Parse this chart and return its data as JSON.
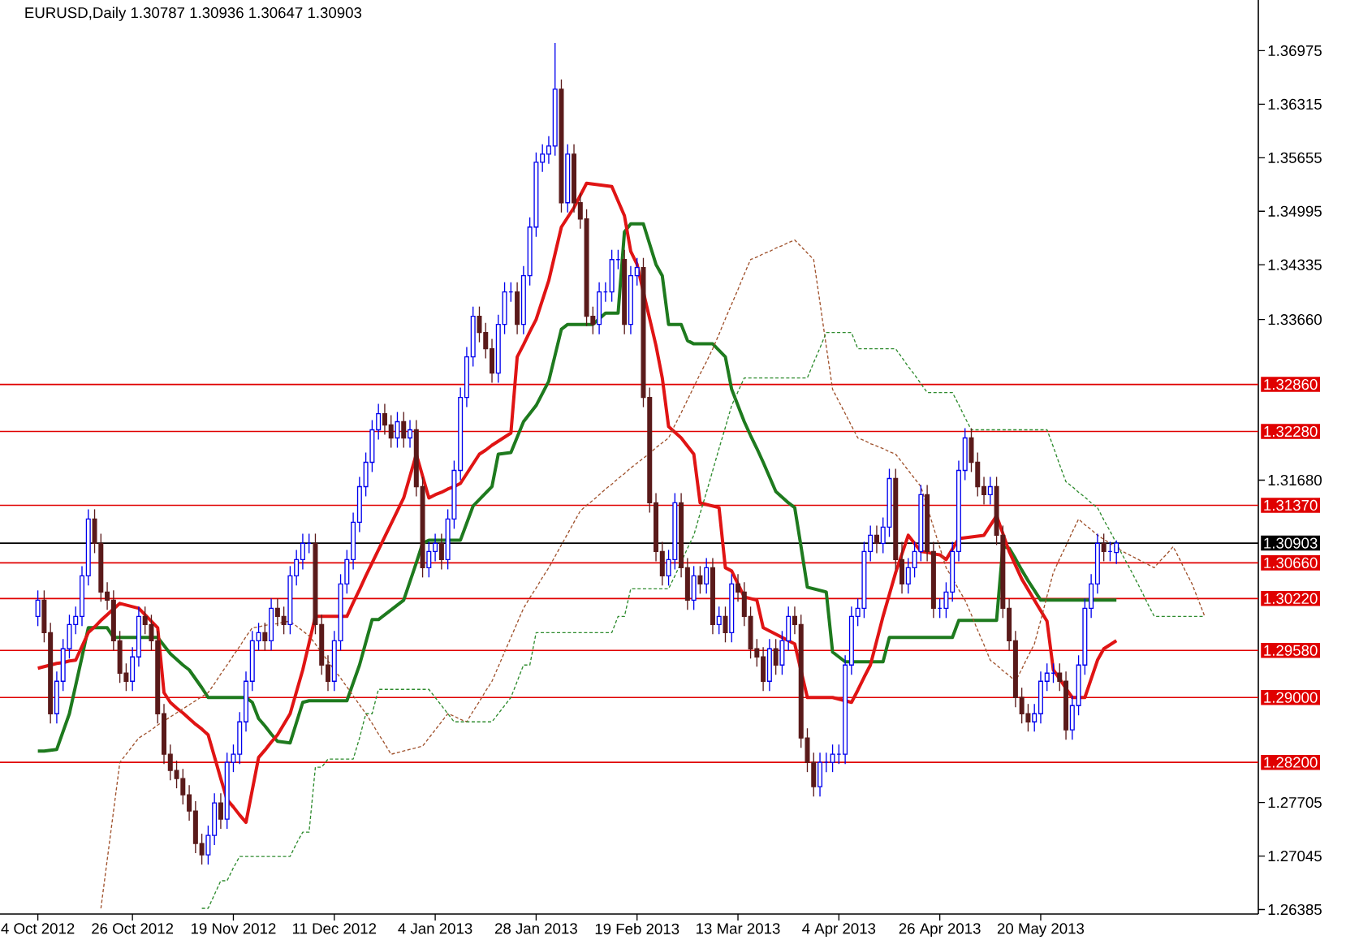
{
  "chart_data": {
    "type": "candlestick",
    "title": "EURUSD,Daily  1.30787 1.30936 1.30647 1.30903",
    "categories": [
      "4 Oct 2012",
      null,
      null,
      null,
      null,
      null,
      null,
      null,
      null,
      null,
      null,
      null,
      null,
      null,
      null,
      "26 Oct 2012",
      null,
      null,
      null,
      null,
      null,
      null,
      null,
      null,
      null,
      null,
      null,
      null,
      null,
      null,
      null,
      "19 Nov 2012",
      null,
      null,
      null,
      null,
      null,
      null,
      null,
      null,
      null,
      null,
      null,
      null,
      null,
      null,
      null,
      "11 Dec 2012",
      null,
      null,
      null,
      null,
      null,
      null,
      null,
      null,
      null,
      null,
      null,
      null,
      null,
      null,
      null,
      "4 Jan 2013",
      null,
      null,
      null,
      null,
      null,
      null,
      null,
      null,
      null,
      null,
      null,
      null,
      null,
      null,
      null,
      "28 Jan 2013",
      null,
      null,
      null,
      null,
      null,
      null,
      null,
      null,
      null,
      null,
      null,
      null,
      null,
      null,
      null,
      "19 Feb 2013",
      null,
      null,
      null,
      null,
      null,
      null,
      null,
      null,
      null,
      null,
      null,
      null,
      null,
      null,
      null,
      "13 Mar 2013",
      null,
      null,
      null,
      null,
      null,
      null,
      null,
      null,
      null,
      null,
      null,
      null,
      null,
      null,
      null,
      "4 Apr 2013",
      null,
      null,
      null,
      null,
      null,
      null,
      null,
      null,
      null,
      null,
      null,
      null,
      null,
      null,
      null,
      "26 Apr 2013",
      null,
      null,
      null,
      null,
      null,
      null,
      null,
      null,
      null,
      null,
      null,
      null,
      null,
      null,
      null,
      "20 May 2013",
      null,
      null,
      null,
      null,
      null,
      null,
      null,
      null,
      null,
      null,
      null,
      null,
      null,
      null,
      null,
      null,
      null,
      null,
      null,
      null,
      null,
      null,
      null,
      null,
      null,
      null,
      null,
      null,
      null,
      null,
      null,
      null,
      null,
      null
    ],
    "ohlc": [
      [
        1.3,
        1.3032,
        1.2988,
        1.302
      ],
      [
        1.302,
        1.3032,
        1.2968,
        1.298
      ],
      [
        1.298,
        1.2992,
        1.2868,
        1.288
      ],
      [
        1.288,
        1.2932,
        1.2868,
        1.292
      ],
      [
        1.292,
        1.2972,
        1.2908,
        1.296
      ],
      [
        1.296,
        1.3002,
        1.2948,
        1.299
      ],
      [
        1.299,
        1.3012,
        1.2978,
        1.3
      ],
      [
        1.3,
        1.3062,
        1.2988,
        1.305
      ],
      [
        1.305,
        1.3132,
        1.3038,
        1.312
      ],
      [
        1.312,
        1.3132,
        1.3078,
        1.309
      ],
      [
        1.309,
        1.3102,
        1.3018,
        1.303
      ],
      [
        1.303,
        1.3042,
        1.3008,
        1.302
      ],
      [
        1.302,
        1.3032,
        1.2958,
        1.297
      ],
      [
        1.297,
        1.2982,
        1.2918,
        1.293
      ],
      [
        1.293,
        1.2942,
        1.2908,
        1.292
      ],
      [
        1.292,
        1.2962,
        1.2908,
        1.295
      ],
      [
        1.295,
        1.3012,
        1.2938,
        1.3
      ],
      [
        1.3,
        1.3012,
        1.2978,
        1.299
      ],
      [
        1.299,
        1.3002,
        1.2958,
        1.297
      ],
      [
        1.297,
        1.2982,
        1.2868,
        1.288
      ],
      [
        1.288,
        1.2892,
        1.2818,
        1.283
      ],
      [
        1.283,
        1.2842,
        1.2798,
        1.281
      ],
      [
        1.281,
        1.2822,
        1.2788,
        1.28
      ],
      [
        1.28,
        1.2812,
        1.2768,
        1.278
      ],
      [
        1.278,
        1.2792,
        1.2748,
        1.276
      ],
      [
        1.276,
        1.2772,
        1.2708,
        1.272
      ],
      [
        1.272,
        1.2732,
        1.2694,
        1.2706
      ],
      [
        1.2706,
        1.2742,
        1.2694,
        1.273
      ],
      [
        1.273,
        1.2782,
        1.2718,
        1.277
      ],
      [
        1.277,
        1.2782,
        1.2738,
        1.275
      ],
      [
        1.275,
        1.2832,
        1.2738,
        1.282
      ],
      [
        1.282,
        1.2842,
        1.2808,
        1.283
      ],
      [
        1.283,
        1.2882,
        1.2818,
        1.287
      ],
      [
        1.287,
        1.2932,
        1.2858,
        1.292
      ],
      [
        1.292,
        1.2982,
        1.2908,
        1.297
      ],
      [
        1.297,
        1.2992,
        1.2958,
        1.298
      ],
      [
        1.298,
        1.2992,
        1.2958,
        1.297
      ],
      [
        1.297,
        1.3022,
        1.2958,
        1.301
      ],
      [
        1.301,
        1.3022,
        1.2988,
        1.3
      ],
      [
        1.3,
        1.3012,
        1.2978,
        1.299
      ],
      [
        1.299,
        1.3062,
        1.2978,
        1.305
      ],
      [
        1.305,
        1.3082,
        1.3038,
        1.307
      ],
      [
        1.307,
        1.3102,
        1.3058,
        1.309
      ],
      [
        1.309,
        1.3102,
        1.3078,
        1.309
      ],
      [
        1.309,
        1.3102,
        1.2978,
        1.299
      ],
      [
        1.299,
        1.3002,
        1.2928,
        1.294
      ],
      [
        1.294,
        1.2952,
        1.2908,
        1.292
      ],
      [
        1.292,
        1.2982,
        1.2908,
        1.297
      ],
      [
        1.297,
        1.3052,
        1.2958,
        1.304
      ],
      [
        1.304,
        1.3082,
        1.3028,
        1.307
      ],
      [
        1.307,
        1.3128,
        1.3058,
        1.3116
      ],
      [
        1.3116,
        1.3172,
        1.3104,
        1.316
      ],
      [
        1.316,
        1.3202,
        1.3148,
        1.319
      ],
      [
        1.319,
        1.3242,
        1.3178,
        1.323
      ],
      [
        1.323,
        1.3262,
        1.3218,
        1.325
      ],
      [
        1.325,
        1.3262,
        1.3224,
        1.3236
      ],
      [
        1.3236,
        1.3248,
        1.3208,
        1.322
      ],
      [
        1.322,
        1.3252,
        1.3208,
        1.324
      ],
      [
        1.324,
        1.3252,
        1.3208,
        1.322
      ],
      [
        1.322,
        1.3242,
        1.3208,
        1.323
      ],
      [
        1.323,
        1.3242,
        1.3148,
        1.316
      ],
      [
        1.316,
        1.3172,
        1.3048,
        1.306
      ],
      [
        1.306,
        1.3092,
        1.3048,
        1.308
      ],
      [
        1.308,
        1.3102,
        1.3068,
        1.309
      ],
      [
        1.309,
        1.3102,
        1.3058,
        1.307
      ],
      [
        1.307,
        1.3132,
        1.3058,
        1.312
      ],
      [
        1.312,
        1.3192,
        1.3108,
        1.318
      ],
      [
        1.318,
        1.3282,
        1.3168,
        1.327
      ],
      [
        1.327,
        1.3332,
        1.3258,
        1.332
      ],
      [
        1.332,
        1.3382,
        1.3308,
        1.337
      ],
      [
        1.337,
        1.3382,
        1.3338,
        1.335
      ],
      [
        1.335,
        1.3362,
        1.3318,
        1.333
      ],
      [
        1.333,
        1.3342,
        1.3288,
        1.33
      ],
      [
        1.33,
        1.3372,
        1.3288,
        1.336
      ],
      [
        1.336,
        1.3412,
        1.3348,
        1.34
      ],
      [
        1.34,
        1.3412,
        1.3388,
        1.34
      ],
      [
        1.34,
        1.3412,
        1.3348,
        1.336
      ],
      [
        1.336,
        1.3432,
        1.3348,
        1.342
      ],
      [
        1.342,
        1.3492,
        1.3408,
        1.348
      ],
      [
        1.348,
        1.3572,
        1.3468,
        1.356
      ],
      [
        1.356,
        1.3582,
        1.3548,
        1.357
      ],
      [
        1.357,
        1.3592,
        1.3558,
        1.358
      ],
      [
        1.358,
        1.3707,
        1.3568,
        1.365
      ],
      [
        1.365,
        1.3662,
        1.3498,
        1.351
      ],
      [
        1.351,
        1.3582,
        1.3498,
        1.357
      ],
      [
        1.357,
        1.3582,
        1.3498,
        1.351
      ],
      [
        1.351,
        1.3522,
        1.3478,
        1.349
      ],
      [
        1.349,
        1.3502,
        1.3358,
        1.337
      ],
      [
        1.337,
        1.3382,
        1.3348,
        1.336
      ],
      [
        1.336,
        1.3412,
        1.3348,
        1.34
      ],
      [
        1.34,
        1.3412,
        1.3388,
        1.34
      ],
      [
        1.34,
        1.3452,
        1.3388,
        1.344
      ],
      [
        1.344,
        1.3452,
        1.3428,
        1.344
      ],
      [
        1.344,
        1.3452,
        1.3348,
        1.336
      ],
      [
        1.336,
        1.3432,
        1.3348,
        1.342
      ],
      [
        1.342,
        1.3442,
        1.3408,
        1.343
      ],
      [
        1.343,
        1.3442,
        1.3258,
        1.327
      ],
      [
        1.327,
        1.3282,
        1.3128,
        1.314
      ],
      [
        1.314,
        1.3152,
        1.3068,
        1.308
      ],
      [
        1.308,
        1.3092,
        1.3038,
        1.305
      ],
      [
        1.305,
        1.3082,
        1.3038,
        1.307
      ],
      [
        1.307,
        1.3152,
        1.3058,
        1.314
      ],
      [
        1.314,
        1.3152,
        1.3048,
        1.306
      ],
      [
        1.306,
        1.3072,
        1.3008,
        1.302
      ],
      [
        1.302,
        1.3062,
        1.3008,
        1.305
      ],
      [
        1.305,
        1.3062,
        1.3028,
        1.304
      ],
      [
        1.304,
        1.3072,
        1.3028,
        1.306
      ],
      [
        1.306,
        1.3072,
        1.2978,
        1.299
      ],
      [
        1.299,
        1.3012,
        1.2978,
        1.3
      ],
      [
        1.3,
        1.3012,
        1.2968,
        1.298
      ],
      [
        1.298,
        1.3052,
        1.2968,
        1.304
      ],
      [
        1.304,
        1.3052,
        1.3018,
        1.303
      ],
      [
        1.303,
        1.3042,
        1.2988,
        1.3
      ],
      [
        1.3,
        1.3012,
        1.2948,
        1.296
      ],
      [
        1.296,
        1.2972,
        1.2938,
        1.295
      ],
      [
        1.295,
        1.2962,
        1.2908,
        1.292
      ],
      [
        1.292,
        1.2972,
        1.2908,
        1.296
      ],
      [
        1.296,
        1.2972,
        1.2928,
        1.294
      ],
      [
        1.294,
        1.2982,
        1.2928,
        1.297
      ],
      [
        1.297,
        1.3012,
        1.2958,
        1.3
      ],
      [
        1.3,
        1.3012,
        1.2978,
        1.299
      ],
      [
        1.299,
        1.3002,
        1.2838,
        1.285
      ],
      [
        1.285,
        1.2862,
        1.2808,
        1.282
      ],
      [
        1.282,
        1.2832,
        1.2778,
        1.279
      ],
      [
        1.279,
        1.2832,
        1.2778,
        1.282
      ],
      [
        1.282,
        1.2832,
        1.2808,
        1.282
      ],
      [
        1.282,
        1.2842,
        1.2808,
        1.283
      ],
      [
        1.283,
        1.2842,
        1.2818,
        1.283
      ],
      [
        1.283,
        1.2952,
        1.2818,
        1.294
      ],
      [
        1.294,
        1.3012,
        1.2928,
        1.3
      ],
      [
        1.3,
        1.3022,
        1.2988,
        1.301
      ],
      [
        1.301,
        1.3092,
        1.2998,
        1.308
      ],
      [
        1.308,
        1.3112,
        1.3068,
        1.31
      ],
      [
        1.31,
        1.3112,
        1.3078,
        1.309
      ],
      [
        1.309,
        1.3122,
        1.3078,
        1.311
      ],
      [
        1.311,
        1.3182,
        1.3098,
        1.317
      ],
      [
        1.317,
        1.3182,
        1.3058,
        1.307
      ],
      [
        1.307,
        1.3092,
        1.3028,
        1.304
      ],
      [
        1.304,
        1.3072,
        1.3028,
        1.306
      ],
      [
        1.306,
        1.3092,
        1.3048,
        1.308
      ],
      [
        1.308,
        1.3162,
        1.3068,
        1.315
      ],
      [
        1.315,
        1.3162,
        1.3068,
        1.308
      ],
      [
        1.308,
        1.3092,
        1.2998,
        1.301
      ],
      [
        1.301,
        1.3022,
        1.2998,
        1.301
      ],
      [
        1.301,
        1.3042,
        1.2998,
        1.303
      ],
      [
        1.303,
        1.3092,
        1.3018,
        1.308
      ],
      [
        1.308,
        1.3192,
        1.3068,
        1.318
      ],
      [
        1.318,
        1.3232,
        1.3168,
        1.322
      ],
      [
        1.322,
        1.3232,
        1.3178,
        1.319
      ],
      [
        1.319,
        1.3202,
        1.3148,
        1.316
      ],
      [
        1.316,
        1.3172,
        1.3138,
        1.315
      ],
      [
        1.315,
        1.3172,
        1.3138,
        1.316
      ],
      [
        1.316,
        1.3172,
        1.3088,
        1.31
      ],
      [
        1.31,
        1.3112,
        1.2998,
        1.301
      ],
      [
        1.301,
        1.3022,
        1.2958,
        1.297
      ],
      [
        1.297,
        1.2982,
        1.2888,
        1.29
      ],
      [
        1.29,
        1.2912,
        1.2868,
        1.288
      ],
      [
        1.288,
        1.2892,
        1.2858,
        1.287
      ],
      [
        1.287,
        1.2892,
        1.2858,
        1.288
      ],
      [
        1.288,
        1.2932,
        1.2868,
        1.292
      ],
      [
        1.292,
        1.2942,
        1.2908,
        1.293
      ],
      [
        1.293,
        1.2942,
        1.2918,
        1.293
      ],
      [
        1.293,
        1.2942,
        1.2908,
        1.292
      ],
      [
        1.292,
        1.2932,
        1.2848,
        1.286
      ],
      [
        1.286,
        1.2902,
        1.2848,
        1.289
      ],
      [
        1.289,
        1.2952,
        1.2878,
        1.294
      ],
      [
        1.294,
        1.3022,
        1.2928,
        1.301
      ],
      [
        1.301,
        1.3052,
        1.2998,
        1.304
      ],
      [
        1.304,
        1.3102,
        1.3028,
        1.309
      ],
      [
        1.309,
        1.3102,
        1.3068,
        1.308
      ],
      [
        1.308,
        1.3092,
        1.3068,
        1.308
      ],
      [
        1.30787,
        1.30936,
        1.30647,
        1.30903
      ],
      null,
      null,
      null,
      null,
      null,
      null,
      null,
      null,
      null,
      null,
      null,
      null,
      null,
      null,
      null,
      null,
      null,
      null,
      null,
      null,
      null,
      null
    ],
    "series": [
      {
        "type": "line",
        "color": "#1e7a1e",
        "line_style": "solid",
        "values": [
          1.2834,
          1.2834,
          1.2835,
          1.2836,
          1.2858,
          1.288,
          1.2915,
          1.295,
          1.2986,
          1.2986,
          1.2986,
          1.2986,
          1.2974,
          1.2974,
          1.2974,
          1.2974,
          1.2974,
          1.2974,
          1.2974,
          1.2974,
          1.2964,
          1.2954,
          1.2947,
          1.294,
          1.2934,
          1.2923,
          1.2912,
          1.29,
          1.29,
          1.29,
          1.29,
          1.29,
          1.29,
          1.29,
          1.2894,
          1.2874,
          1.2865,
          1.2855,
          1.2846,
          1.2845,
          1.2844,
          1.2869,
          1.2894,
          1.2896,
          1.2896,
          1.2896,
          1.2896,
          1.2896,
          1.2896,
          1.2896,
          1.2918,
          1.294,
          1.2968,
          1.2996,
          1.2996,
          1.3002,
          1.3008,
          1.3014,
          1.302,
          1.3043,
          1.3066,
          1.309,
          1.3094,
          1.3094,
          1.3094,
          1.3094,
          1.3094,
          1.3094,
          1.3115,
          1.3136,
          1.3144,
          1.3152,
          1.316,
          1.32,
          1.3201,
          1.3202,
          1.3221,
          1.324,
          1.325,
          1.326,
          1.3275,
          1.329,
          1.3322,
          1.3354,
          1.336,
          1.336,
          1.336,
          1.336,
          1.336,
          1.3367,
          1.3374,
          1.3374,
          1.3374,
          1.3474,
          1.3484,
          1.3484,
          1.3484,
          1.3459,
          1.3434,
          1.342,
          1.336,
          1.336,
          1.336,
          1.334,
          1.3336,
          1.3336,
          1.3336,
          1.3336,
          1.3328,
          1.332,
          1.328,
          1.326,
          1.324,
          1.3223,
          1.3207,
          1.319,
          1.3172,
          1.3154,
          1.3147,
          1.314,
          1.3134,
          1.3086,
          1.3036,
          1.3034,
          1.3032,
          1.303,
          1.2956,
          1.295,
          1.2944,
          1.2944,
          1.2944,
          1.2944,
          1.2944,
          1.2944,
          1.2944,
          1.2974,
          1.2974,
          1.2974,
          1.2974,
          1.2974,
          1.2974,
          1.2974,
          1.2974,
          1.2974,
          1.2974,
          1.2974,
          1.2995,
          1.2995,
          1.2995,
          1.2995,
          1.2995,
          1.2995,
          1.2995,
          1.3086,
          1.3084,
          1.3071,
          1.3057,
          1.3044,
          1.3032,
          1.302,
          1.302,
          1.302,
          1.302,
          1.302,
          1.302,
          1.302,
          1.302,
          1.302,
          1.302,
          1.302,
          1.302,
          1.302,
          null,
          null,
          null,
          null,
          null,
          null,
          null,
          null,
          null,
          null,
          null,
          null,
          null,
          null,
          null,
          null,
          null,
          null,
          null,
          null,
          null,
          null
        ]
      },
      {
        "type": "line",
        "color": "#e01414",
        "line_style": "solid",
        "values": [
          1.2936,
          1.2938,
          1.294,
          1.2942,
          1.2943,
          1.2945,
          1.2946,
          1.2963,
          1.298,
          1.2987,
          1.2995,
          1.3002,
          1.3009,
          1.3016,
          1.3014,
          1.3012,
          1.301,
          1.3002,
          1.2994,
          1.2986,
          1.2906,
          1.2894,
          1.2887,
          1.2881,
          1.2874,
          1.2867,
          1.2861,
          1.2854,
          1.2827,
          1.28,
          1.2774,
          1.2765,
          1.2755,
          1.2746,
          1.2786,
          1.2826,
          1.2835,
          1.2845,
          1.2854,
          1.2867,
          1.288,
          1.2907,
          1.2934,
          1.2967,
          1.3,
          1.3,
          1.3,
          1.3,
          1.3,
          1.3,
          1.3017,
          1.3033,
          1.305,
          1.3066,
          1.3082,
          1.3098,
          1.3114,
          1.313,
          1.3146,
          1.3173,
          1.32,
          1.3173,
          1.3146,
          1.315,
          1.3153,
          1.3157,
          1.316,
          1.3164,
          1.3176,
          1.3188,
          1.32,
          1.3205,
          1.3211,
          1.3216,
          1.3221,
          1.3226,
          1.332,
          1.3335,
          1.3351,
          1.3366,
          1.339,
          1.3414,
          1.3447,
          1.348,
          1.3492,
          1.3504,
          1.3519,
          1.3534,
          1.3533,
          1.3532,
          1.3531,
          1.353,
          1.3512,
          1.3494,
          1.345,
          1.3434,
          1.34,
          1.3367,
          1.3334,
          1.3294,
          1.3234,
          1.3227,
          1.322,
          1.321,
          1.32,
          1.314,
          1.3138,
          1.3136,
          1.3134,
          1.306,
          1.3056,
          1.304,
          1.3024,
          1.3022,
          1.302,
          1.2986,
          1.2982,
          1.2978,
          1.2974,
          1.297,
          1.2966,
          1.2933,
          1.29,
          1.29,
          1.29,
          1.29,
          1.29,
          1.2898,
          1.2896,
          1.2894,
          1.2909,
          1.2925,
          1.294,
          1.297,
          1.3,
          1.3027,
          1.3054,
          1.3077,
          1.31,
          1.309,
          1.308,
          1.3079,
          1.3077,
          1.3076,
          1.307,
          1.3083,
          1.3096,
          1.3097,
          1.3098,
          1.3099,
          1.31,
          1.3112,
          1.3124,
          1.3102,
          1.308,
          1.3063,
          1.3046,
          1.3033,
          1.302,
          1.3007,
          1.2994,
          1.2934,
          1.2923,
          1.2911,
          1.29,
          1.29,
          1.29,
          1.2923,
          1.2946,
          1.296,
          1.2965,
          1.297,
          null,
          null,
          null,
          null,
          null,
          null,
          null,
          null,
          null,
          null,
          null,
          null,
          null,
          null,
          null,
          null,
          null,
          null,
          null,
          null,
          null,
          null
        ]
      },
      {
        "type": "line",
        "color": "#a0522d",
        "line_style": "dashed",
        "values": [
          null,
          null,
          null,
          null,
          null,
          null,
          null,
          null,
          null,
          null,
          1.264,
          1.27,
          1.276,
          1.282,
          1.283,
          1.284,
          1.285,
          1.2855,
          1.286,
          1.2866,
          1.2871,
          1.2876,
          1.2881,
          1.2886,
          1.2891,
          1.2896,
          1.2901,
          1.2906,
          1.2917,
          1.2929,
          1.294,
          1.2952,
          1.2963,
          1.2975,
          1.2986,
          1.2987,
          1.2989,
          1.299,
          1.2991,
          1.2993,
          1.2994,
          1.2988,
          1.2982,
          1.2976,
          1.2966,
          1.2955,
          1.2945,
          1.2934,
          1.2924,
          1.2913,
          1.2902,
          1.2891,
          1.288,
          1.2868,
          1.2855,
          1.2843,
          1.283,
          1.2832,
          1.2834,
          1.2836,
          1.2838,
          1.284,
          1.285,
          1.286,
          1.287,
          1.288,
          1.2877,
          1.2873,
          1.287,
          1.2883,
          1.2895,
          1.2908,
          1.292,
          1.2938,
          1.2956,
          1.2974,
          1.2992,
          1.301,
          1.3023,
          1.3035,
          1.3048,
          1.306,
          1.3074,
          1.3088,
          1.3102,
          1.3116,
          1.313,
          1.3137,
          1.3143,
          1.315,
          1.3157,
          1.3163,
          1.317,
          1.3176,
          1.3183,
          1.3189,
          1.3195,
          1.3201,
          1.3208,
          1.3214,
          1.322,
          1.3236,
          1.3251,
          1.3267,
          1.3283,
          1.3299,
          1.3314,
          1.333,
          1.3348,
          1.3367,
          1.3385,
          1.3403,
          1.3422,
          1.344,
          1.3443,
          1.3447,
          1.345,
          1.3454,
          1.3457,
          1.3461,
          1.3464,
          1.3456,
          1.3448,
          1.344,
          1.3387,
          1.3333,
          1.328,
          1.3265,
          1.325,
          1.3235,
          1.322,
          1.3217,
          1.3213,
          1.321,
          1.3207,
          1.3203,
          1.32,
          1.319,
          1.318,
          1.317,
          1.316,
          1.3135,
          1.311,
          1.3085,
          1.306,
          1.3047,
          1.3033,
          1.302,
          1.3002,
          1.2983,
          1.2965,
          1.2946,
          1.294,
          1.2933,
          1.2927,
          1.292,
          1.2935,
          1.2951,
          1.2966,
          1.2995,
          1.3025,
          1.3054,
          1.3071,
          1.3087,
          1.3104,
          1.312,
          1.3113,
          1.3107,
          1.31,
          1.3095,
          1.309,
          1.3085,
          1.308,
          1.3076,
          1.3072,
          1.3068,
          1.3064,
          1.306,
          1.3069,
          1.3077,
          1.3086,
          1.3071,
          1.3055,
          1.304,
          1.302,
          1.3,
          null,
          null,
          null,
          null,
          null,
          null,
          null,
          null
        ]
      },
      {
        "type": "line",
        "color": "#2e8b2e",
        "line_style": "dashed",
        "values": [
          null,
          null,
          null,
          null,
          null,
          null,
          null,
          null,
          null,
          null,
          null,
          null,
          null,
          null,
          null,
          null,
          null,
          null,
          null,
          null,
          null,
          null,
          null,
          null,
          null,
          null,
          1.264,
          1.264,
          1.2657,
          1.2674,
          1.2674,
          1.269,
          1.2704,
          1.2704,
          1.2704,
          1.2704,
          1.2704,
          1.2704,
          1.2704,
          1.2704,
          1.2704,
          1.272,
          1.2734,
          1.2734,
          1.2814,
          1.2814,
          1.2824,
          1.2824,
          1.2824,
          1.2824,
          1.2824,
          1.285,
          1.288,
          1.288,
          1.291,
          1.291,
          1.291,
          1.291,
          1.291,
          1.291,
          1.291,
          1.291,
          1.291,
          1.29,
          1.289,
          1.288,
          1.287,
          1.287,
          1.287,
          1.287,
          1.287,
          1.287,
          1.287,
          1.288,
          1.289,
          1.29,
          1.292,
          1.294,
          1.294,
          1.298,
          1.298,
          1.298,
          1.298,
          1.298,
          1.298,
          1.298,
          1.298,
          1.298,
          1.298,
          1.298,
          1.298,
          1.298,
          1.3,
          1.3,
          1.3034,
          1.3034,
          1.3034,
          1.3034,
          1.3034,
          1.3034,
          1.3034,
          1.305,
          null,
          1.3084,
          1.31,
          1.3127,
          1.3153,
          1.318,
          1.3207,
          1.3233,
          1.326,
          1.3277,
          1.3294,
          1.3294,
          1.3294,
          1.3294,
          1.3294,
          1.3294,
          1.3294,
          1.3294,
          1.3294,
          1.3294,
          1.3294,
          1.3313,
          1.3331,
          1.335,
          1.335,
          1.335,
          1.335,
          1.335,
          1.333,
          1.333,
          1.333,
          1.333,
          1.333,
          1.333,
          1.333,
          1.3319,
          1.3308,
          1.3298,
          1.3287,
          1.3276,
          1.3276,
          1.3276,
          1.3276,
          1.3276,
          1.3261,
          1.3245,
          1.323,
          1.323,
          1.323,
          1.323,
          1.323,
          1.323,
          1.323,
          1.323,
          1.323,
          1.323,
          1.323,
          1.323,
          1.323,
          1.3209,
          1.3187,
          1.3166,
          1.316,
          1.3153,
          1.3147,
          1.314,
          1.3134,
          1.3119,
          1.3105,
          1.309,
          1.3075,
          1.3061,
          1.3046,
          1.3031,
          1.3015,
          1.3,
          1.3,
          1.3,
          1.3,
          1.3,
          1.3,
          1.3,
          1.3,
          1.3,
          null,
          null,
          null,
          null,
          null,
          null,
          null,
          null
        ]
      }
    ],
    "ylim": [
      1.2633,
      1.376
    ],
    "yticks": [
      {
        "value": 1.36975,
        "label": "1.36975"
      },
      {
        "value": 1.36315,
        "label": "1.36315"
      },
      {
        "value": 1.35655,
        "label": "1.35655"
      },
      {
        "value": 1.34995,
        "label": "1.34995"
      },
      {
        "value": 1.34335,
        "label": "1.34335"
      },
      {
        "value": 1.3366,
        "label": "1.33660"
      },
      {
        "value": 1.3168,
        "label": "1.31680"
      },
      {
        "value": 1.27705,
        "label": "1.27705"
      },
      {
        "value": 1.27045,
        "label": "1.27045"
      },
      {
        "value": 1.26385,
        "label": "1.26385"
      }
    ],
    "ref_lines": [
      {
        "axis": "y",
        "value": 1.3286,
        "label": "1.32860",
        "color": "#e00000"
      },
      {
        "axis": "y",
        "value": 1.3228,
        "label": "1.32280",
        "color": "#e00000"
      },
      {
        "axis": "y",
        "value": 1.3137,
        "label": "1.31370",
        "color": "#e00000"
      },
      {
        "axis": "y",
        "value": 1.30903,
        "label": "1.30903",
        "color": "#000000"
      },
      {
        "axis": "y",
        "value": 1.3066,
        "label": "1.30660",
        "color": "#e00000"
      },
      {
        "axis": "y",
        "value": 1.3022,
        "label": "1.30220",
        "color": "#e00000"
      },
      {
        "axis": "y",
        "value": 1.2958,
        "label": "1.29580",
        "color": "#e00000"
      },
      {
        "axis": "y",
        "value": 1.29,
        "label": "1.29000",
        "color": "#e00000"
      },
      {
        "axis": "y",
        "value": 1.282,
        "label": "1.28200",
        "color": "#e00000"
      }
    ]
  }
}
